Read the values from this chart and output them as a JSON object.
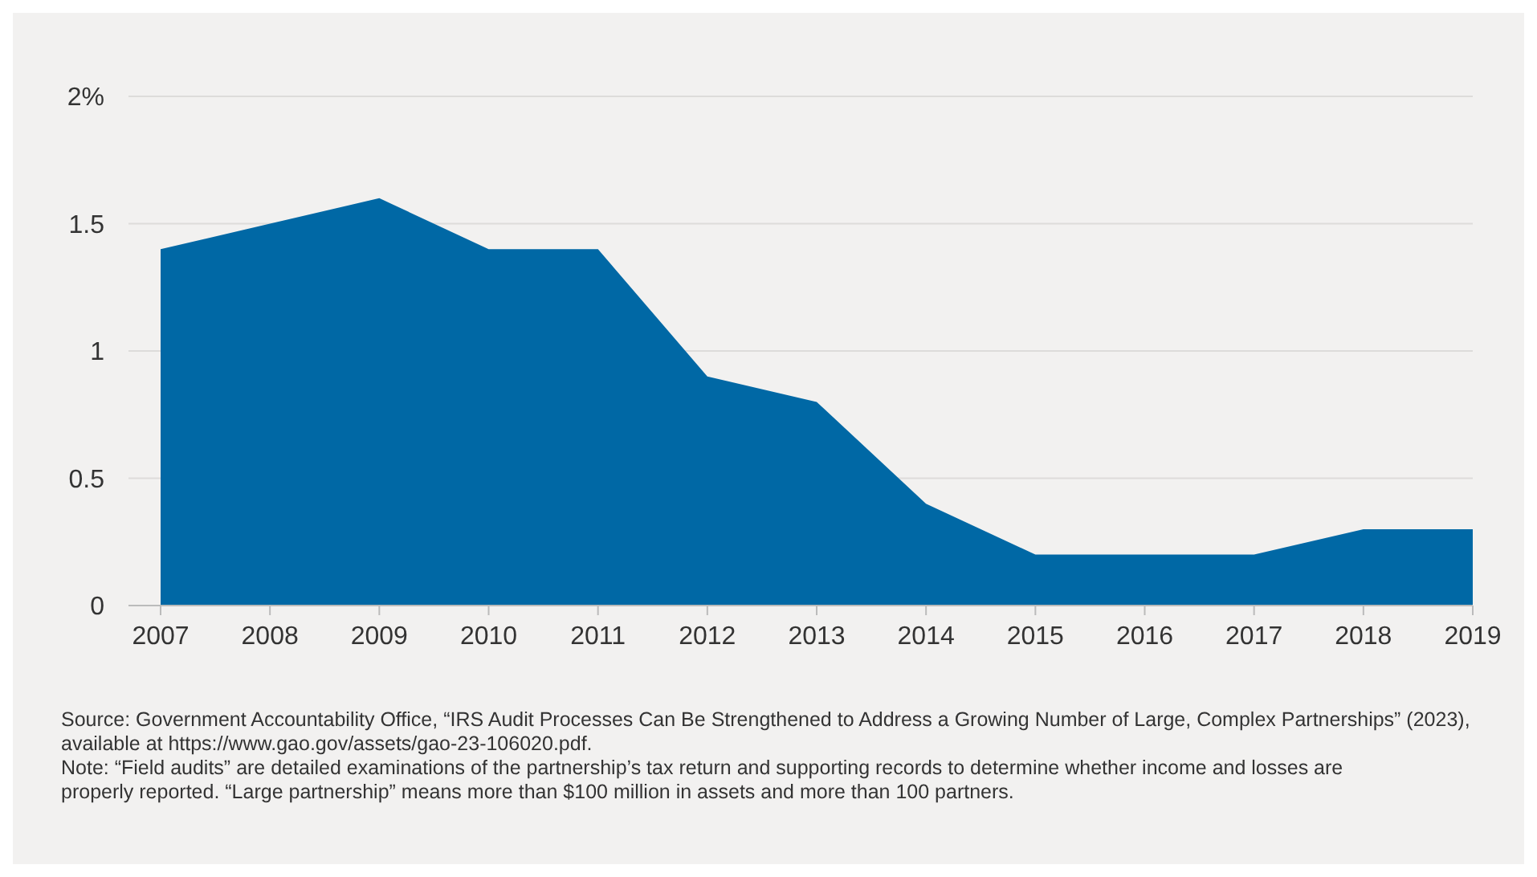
{
  "chart_data": {
    "type": "area",
    "categories": [
      "2007",
      "2008",
      "2009",
      "2010",
      "2011",
      "2012",
      "2013",
      "2014",
      "2015",
      "2016",
      "2017",
      "2018",
      "2019"
    ],
    "series": [
      {
        "color": "#0068a5",
        "values": [
          1.4,
          1.5,
          1.6,
          1.4,
          1.4,
          0.9,
          0.8,
          0.4,
          0.2,
          0.2,
          0.2,
          0.3,
          0.3
        ]
      }
    ],
    "ylim": [
      0,
      2
    ],
    "yticks": [
      0,
      0.5,
      1,
      1.5,
      {
        "value": 2,
        "label": "2%"
      }
    ],
    "grid": "y",
    "annotations": [
      "Source: Government Accountability Office, “IRS Audit Processes Can Be Strengthened to Address a Growing Number of Large, Complex Partnerships” (2023), available at https://www.gao.gov/assets/gao-23-106020.pdf.",
      "Note: “Field audits” are detailed examinations of the partnership’s tax return and supporting records to determine whether income and losses are properly reported. “Large partnership” means more than $100 million in assets and more than 100 partners."
    ]
  }
}
